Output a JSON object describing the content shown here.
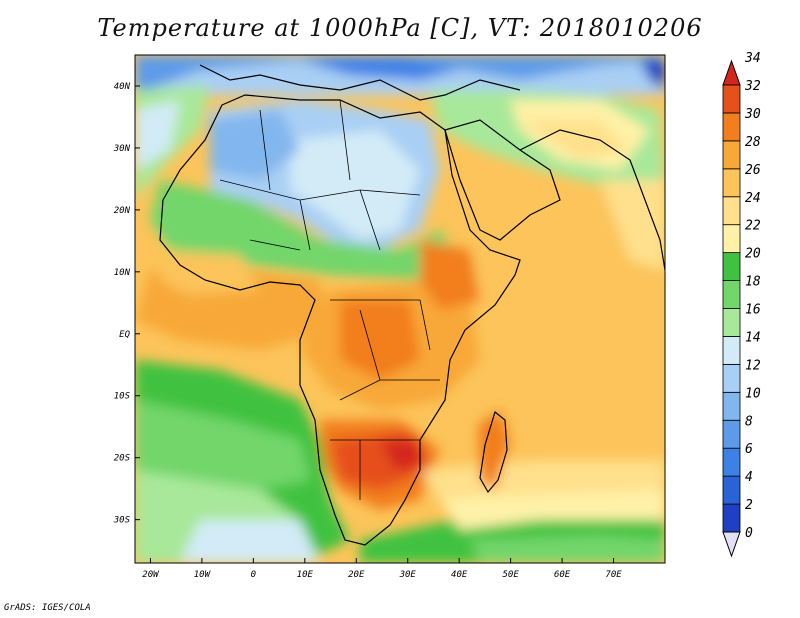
{
  "title": "Temperature at 1000hPa [C], VT: 2018010206",
  "credit": "GrADS: IGES/COLA",
  "map": {
    "lon_range": [
      -23,
      80
    ],
    "lat_range": [
      -37,
      45
    ],
    "lon_ticks": [
      {
        "value": -20,
        "label": "20W"
      },
      {
        "value": -10,
        "label": "10W"
      },
      {
        "value": 0,
        "label": "0"
      },
      {
        "value": 10,
        "label": "10E"
      },
      {
        "value": 20,
        "label": "20E"
      },
      {
        "value": 30,
        "label": "30E"
      },
      {
        "value": 40,
        "label": "40E"
      },
      {
        "value": 50,
        "label": "50E"
      },
      {
        "value": 60,
        "label": "60E"
      },
      {
        "value": 70,
        "label": "70E"
      }
    ],
    "lat_ticks": [
      {
        "value": 40,
        "label": "40N"
      },
      {
        "value": 30,
        "label": "30N"
      },
      {
        "value": 20,
        "label": "20N"
      },
      {
        "value": 10,
        "label": "10N"
      },
      {
        "value": 0,
        "label": "EQ"
      },
      {
        "value": -10,
        "label": "10S"
      },
      {
        "value": -20,
        "label": "20S"
      },
      {
        "value": -30,
        "label": "30S"
      }
    ]
  },
  "colorbar": {
    "levels": [
      0,
      2,
      4,
      6,
      8,
      10,
      12,
      14,
      16,
      18,
      20,
      22,
      24,
      26,
      28,
      30,
      32,
      34
    ],
    "labels": [
      "0",
      "2",
      "4",
      "6",
      "8",
      "10",
      "12",
      "14",
      "16",
      "18",
      "20",
      "22",
      "24",
      "26",
      "28",
      "30",
      "32",
      "34"
    ],
    "colors": [
      "#1a1a8c",
      "#1f3fc4",
      "#2a62d8",
      "#3d80e6",
      "#5d9be8",
      "#82b6ee",
      "#a9cff4",
      "#d2ebf7",
      "#a8e89a",
      "#72d66a",
      "#3fc23f",
      "#fff2a8",
      "#ffe08c",
      "#fcc45a",
      "#f8a838",
      "#f27e1e",
      "#e6501a",
      "#d4261c"
    ]
  }
}
